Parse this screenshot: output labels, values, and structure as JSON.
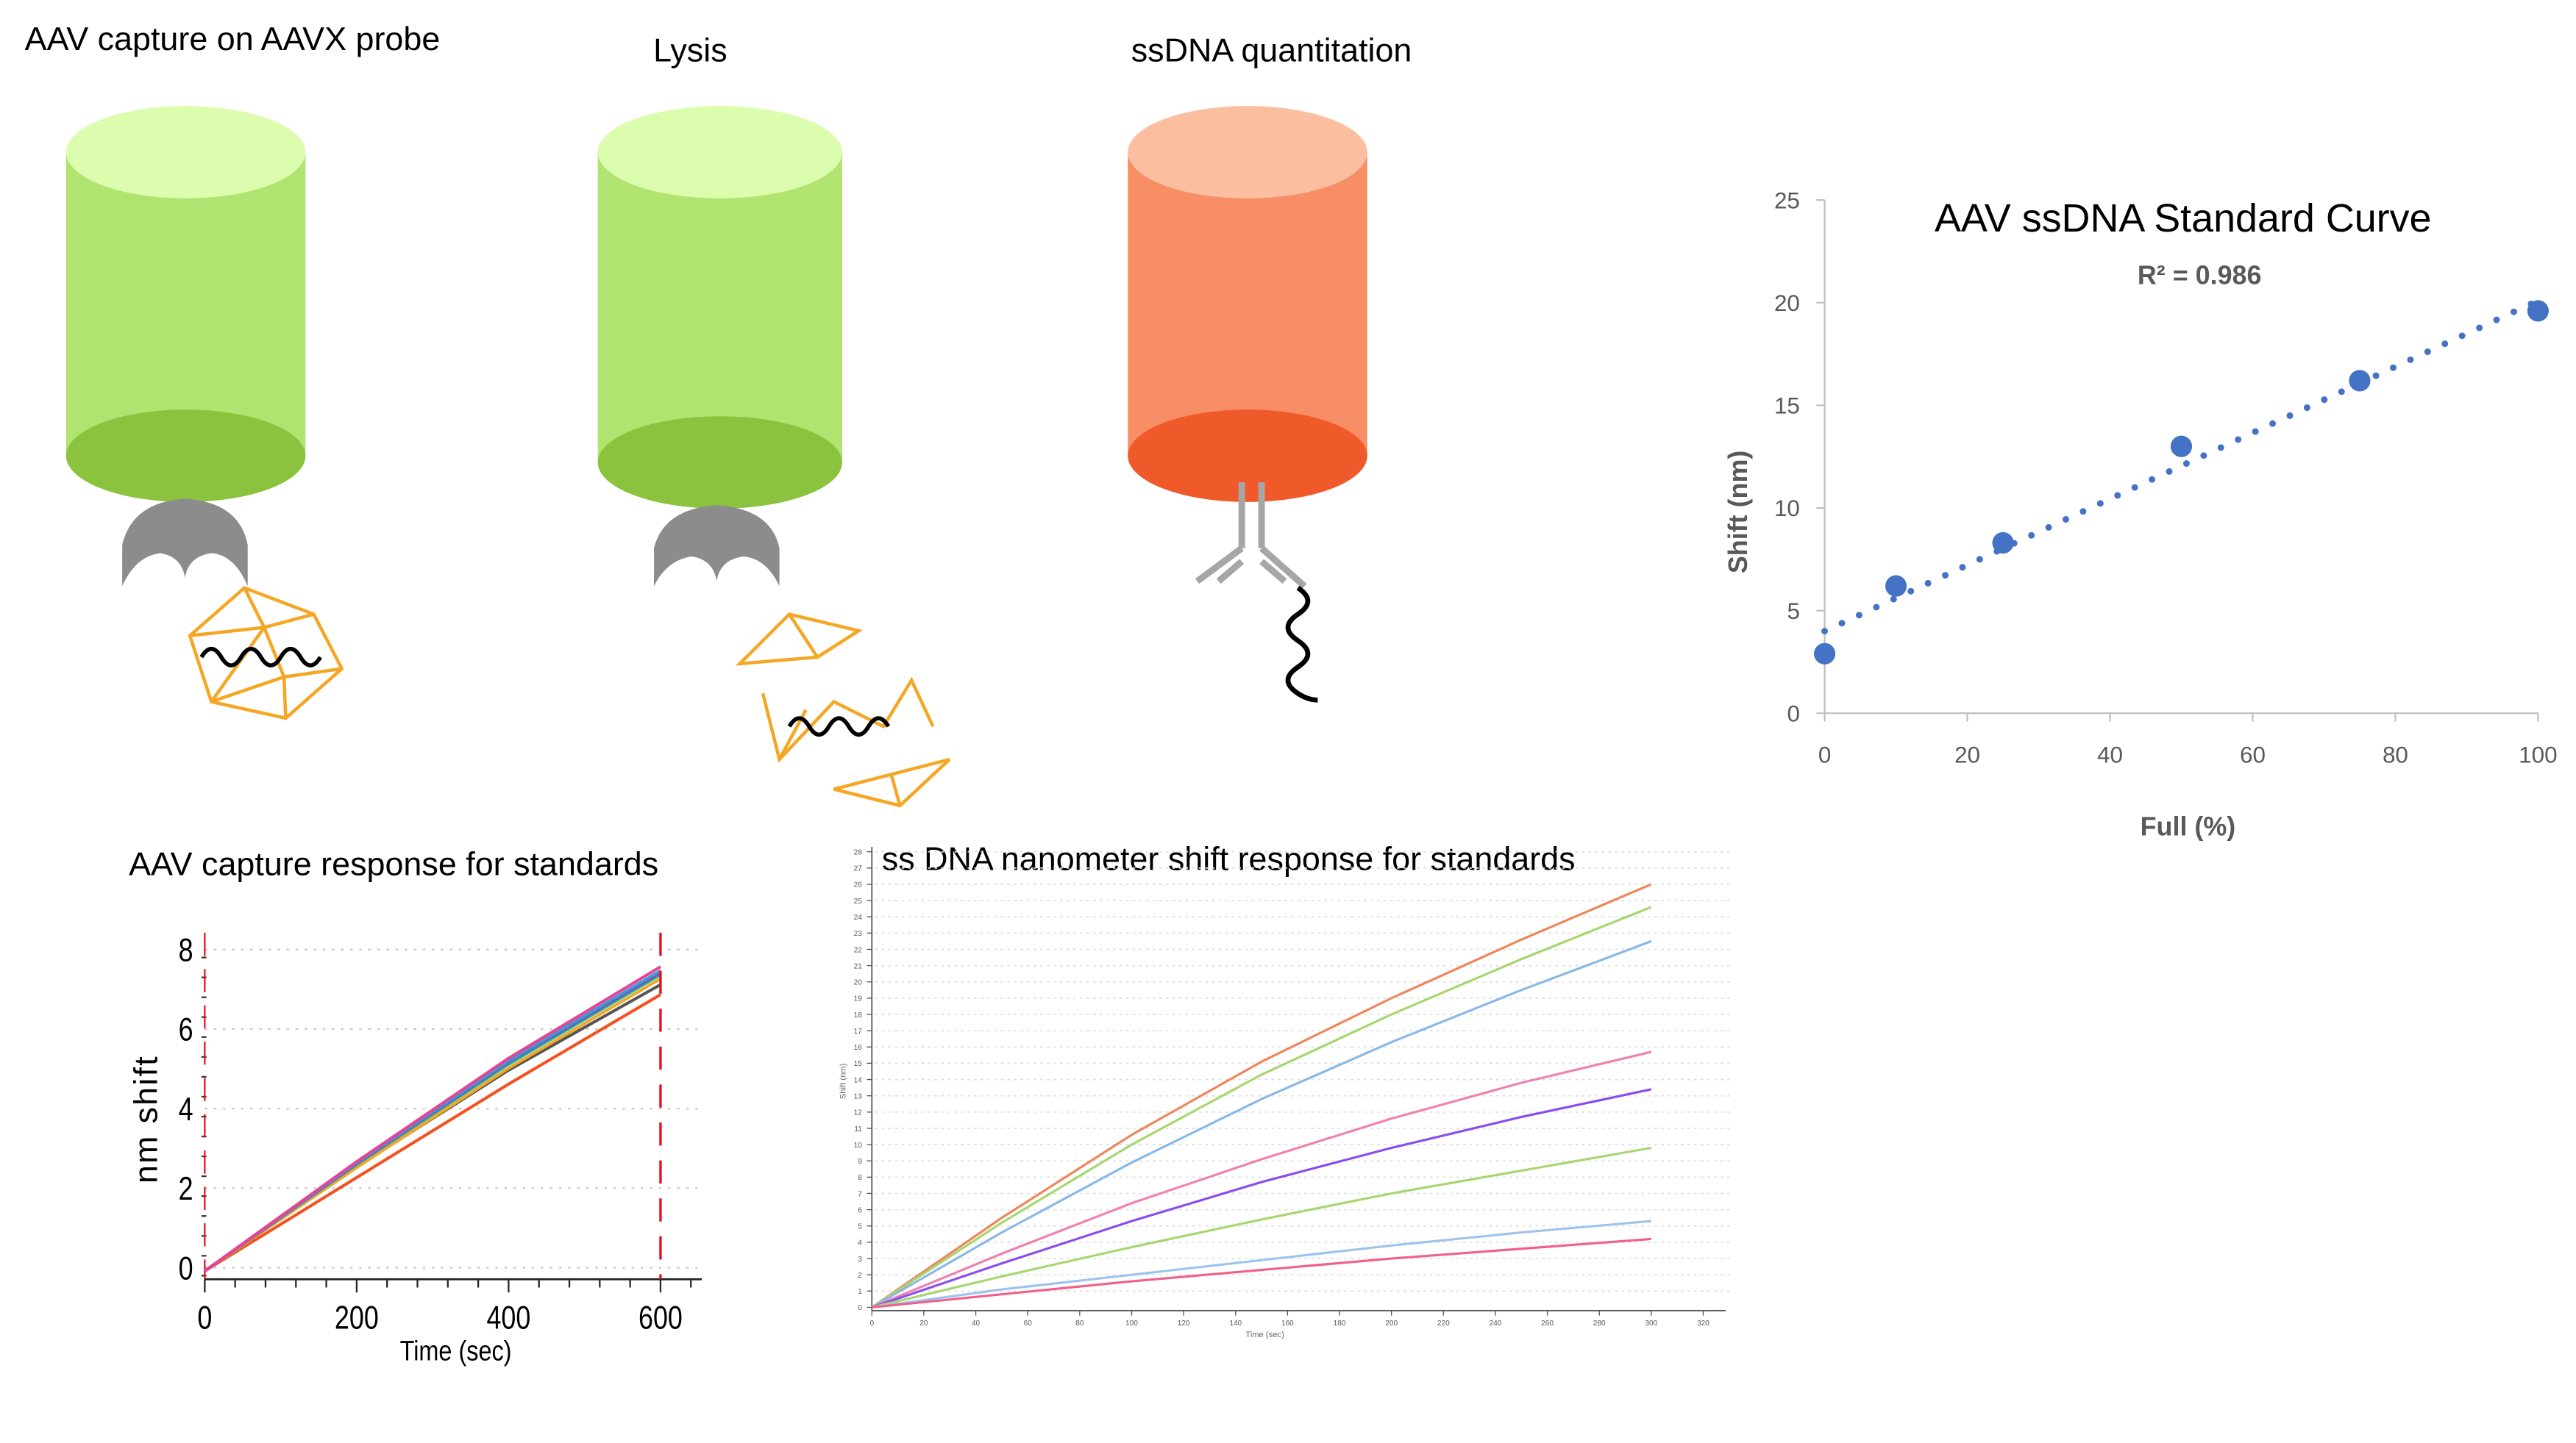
{
  "panels": {
    "capture_title": "AAV capture on AAVX probe",
    "lysis_title": "Lysis",
    "quant_title": "ssDNA quantitation"
  },
  "colors": {
    "green_top": "#dcfcae",
    "green_body": "#b0e36f",
    "green_bottom": "#8bc33e",
    "orange_top": "#fbbfa0",
    "orange_body": "#f88e66",
    "orange_bottom": "#f05a2a",
    "capsid": "#f5a623",
    "ligand": "#8c8c8c",
    "dna": "#000000"
  },
  "chart_data": [
    {
      "type": "scatter",
      "title": "AAV ssDNA Standard Curve",
      "annotation": "R² = 0.986",
      "xlabel": "Full (%)",
      "ylabel": "Shift (nm)",
      "xlim": [
        0,
        100
      ],
      "ylim": [
        0,
        25
      ],
      "xticks": [
        0,
        20,
        40,
        60,
        80,
        100
      ],
      "yticks": [
        0,
        5,
        10,
        15,
        20,
        25
      ],
      "x": [
        0,
        10,
        25,
        50,
        75,
        100
      ],
      "y": [
        2.9,
        6.2,
        8.3,
        13.0,
        16.2,
        19.6
      ],
      "trendline": {
        "style": "dotted",
        "x": [
          0,
          100
        ],
        "y": [
          4.0,
          20.1
        ]
      },
      "color": "#4472c4",
      "grid": false
    },
    {
      "type": "line",
      "title": "AAV capture response for standards",
      "xlabel": "Time (sec)",
      "ylabel": "nm shift",
      "xlim": [
        0,
        650
      ],
      "ylim": [
        -0.2,
        8.3
      ],
      "xticks": [
        0,
        200,
        400,
        600
      ],
      "yticks": [
        0,
        2,
        4,
        6,
        8
      ],
      "x": [
        0,
        200,
        400,
        600
      ],
      "marker_line": {
        "x": 600,
        "color": "#e8101e",
        "style": "dashed"
      },
      "grid": true,
      "series": [
        {
          "color": "#f4511e",
          "values": [
            0,
            2.35,
            4.7,
            6.95
          ]
        },
        {
          "color": "#555555",
          "values": [
            0,
            2.62,
            5.05,
            7.2
          ]
        },
        {
          "color": "#f5a623",
          "values": [
            0,
            2.6,
            5.1,
            7.35
          ]
        },
        {
          "color": "#1abc9c",
          "values": [
            0,
            2.68,
            5.2,
            7.45
          ]
        },
        {
          "color": "#8e44ad",
          "values": [
            0,
            2.7,
            5.25,
            7.5
          ]
        },
        {
          "color": "#3a9ad9",
          "values": [
            0,
            2.72,
            5.28,
            7.55
          ]
        },
        {
          "color": "#e84393",
          "values": [
            0,
            2.75,
            5.35,
            7.65
          ]
        }
      ]
    },
    {
      "type": "line",
      "title": "ss DNA nanometer shift response for standards",
      "xlabel": "Time (sec)",
      "ylabel": "Shift (nm)",
      "xlim": [
        0,
        325
      ],
      "ylim": [
        0,
        28
      ],
      "xticks": [
        0,
        20,
        40,
        60,
        80,
        100,
        120,
        140,
        160,
        180,
        200,
        220,
        240,
        260,
        280,
        300,
        320
      ],
      "yticks": [
        0,
        1,
        2,
        3,
        4,
        5,
        6,
        7,
        8,
        9,
        10,
        11,
        12,
        13,
        14,
        15,
        16,
        17,
        18,
        19,
        20,
        21,
        22,
        23,
        24,
        25,
        26,
        27,
        28
      ],
      "x": [
        0,
        50,
        100,
        150,
        200,
        250,
        300
      ],
      "grid": true,
      "series": [
        {
          "color": "#f0855a",
          "values": [
            0,
            5.5,
            10.6,
            15.1,
            19.0,
            22.6,
            26.0
          ]
        },
        {
          "color": "#a6d66e",
          "values": [
            0,
            5.2,
            10.0,
            14.3,
            18.0,
            21.4,
            24.6
          ]
        },
        {
          "color": "#8ab8e6",
          "values": [
            0,
            4.6,
            8.9,
            12.8,
            16.3,
            19.5,
            22.5
          ]
        },
        {
          "color": "#f080b0",
          "values": [
            0,
            3.3,
            6.4,
            9.1,
            11.6,
            13.8,
            15.7
          ]
        },
        {
          "color": "#8a4cf0",
          "values": [
            0,
            2.7,
            5.3,
            7.7,
            9.8,
            11.7,
            13.4
          ]
        },
        {
          "color": "#a6d66e",
          "values": [
            0,
            1.9,
            3.7,
            5.4,
            7.0,
            8.4,
            9.8
          ]
        },
        {
          "color": "#9cc4ec",
          "values": [
            0,
            1.1,
            2.0,
            2.9,
            3.8,
            4.6,
            5.3
          ]
        },
        {
          "color": "#f0608a",
          "values": [
            0,
            0.8,
            1.6,
            2.3,
            3.0,
            3.6,
            4.2
          ]
        }
      ]
    }
  ]
}
